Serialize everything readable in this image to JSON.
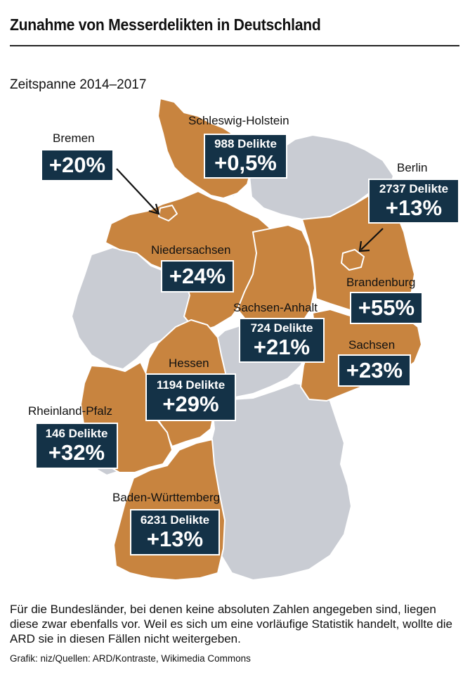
{
  "header": {
    "title": "Zunahme von Messerdelikten in Deutschland",
    "subtitle": "Zeitspanne 2014–2017"
  },
  "colors": {
    "highlight": "#c8843f",
    "other": "#c9ccd3",
    "box": "#143247",
    "border": "#ffffff"
  },
  "states": {
    "schleswig_holstein": {
      "name": "Schleswig-Holstein",
      "count": "988 Delikte",
      "pct": "+0,5%"
    },
    "bremen": {
      "name": "Bremen",
      "pct": "+20%"
    },
    "berlin": {
      "name": "Berlin",
      "count": "2737 Delikte",
      "pct": "+13%"
    },
    "niedersachsen": {
      "name": "Niedersachsen",
      "pct": "+24%"
    },
    "brandenburg": {
      "name": "Brandenburg",
      "pct": "+55%"
    },
    "sachsen_anhalt": {
      "name": "Sachsen-Anhalt",
      "count": "724 Delikte",
      "pct": "+21%"
    },
    "sachsen": {
      "name": "Sachsen",
      "pct": "+23%"
    },
    "hessen": {
      "name": "Hessen",
      "count": "1194 Delikte",
      "pct": "+29%"
    },
    "rheinland_pfalz": {
      "name": "Rheinland-Pfalz",
      "count": "146 Delikte",
      "pct": "+32%"
    },
    "baden_wuerttemberg": {
      "name": "Baden-Württemberg",
      "count": "6231 Delikte",
      "pct": "+13%"
    }
  },
  "footer": {
    "note": "Für die Bundesländer, bei denen keine absoluten Zahlen angegeben sind, liegen diese zwar ebenfalls vor. Weil es sich um eine vorläufige Statistik handelt, wollte die ARD sie in diesen Fällen nicht weitergeben.",
    "source": "Grafik: niz/Quellen: ARD/Kontraste, Wikimedia Commons"
  }
}
